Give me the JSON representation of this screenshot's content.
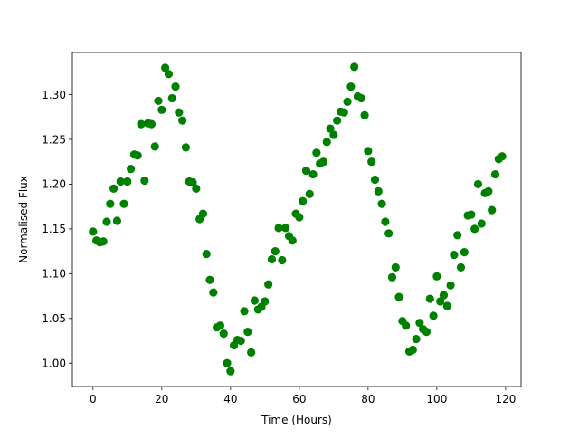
{
  "chart_data": {
    "type": "scatter",
    "title": "",
    "xlabel": "Time (Hours)",
    "ylabel": "Normalised Flux",
    "xlim": [
      -6,
      124.5
    ],
    "ylim": [
      0.974,
      1.347
    ],
    "x_ticks": [
      0,
      20,
      40,
      60,
      80,
      100,
      120
    ],
    "y_ticks": [
      1.0,
      1.05,
      1.1,
      1.15,
      1.2,
      1.25,
      1.3
    ],
    "x_tick_labels": [
      "0",
      "20",
      "40",
      "60",
      "80",
      "100",
      "120"
    ],
    "y_tick_labels": [
      "1.00",
      "1.05",
      "1.10",
      "1.15",
      "1.20",
      "1.25",
      "1.30"
    ],
    "grid": false,
    "marker_color": "#008000",
    "points": {
      "x": [
        0,
        1,
        2,
        3,
        4,
        5,
        6,
        7,
        8,
        9,
        10,
        11,
        12,
        13,
        14,
        15,
        16,
        17,
        18,
        19,
        20,
        21,
        22,
        23,
        24,
        25,
        26,
        27,
        28,
        29,
        30,
        31,
        32,
        33,
        34,
        35,
        36,
        37,
        38,
        39,
        40,
        41,
        42,
        43,
        44,
        45,
        46,
        47,
        48,
        49,
        50,
        51,
        52,
        53,
        54,
        55,
        56,
        57,
        58,
        59,
        60,
        61,
        62,
        63,
        64,
        65,
        66,
        67,
        68,
        69,
        70,
        71,
        72,
        73,
        74,
        75,
        76,
        77,
        78,
        79,
        80,
        81,
        82,
        83,
        84,
        85,
        86,
        87,
        88,
        89,
        90,
        91,
        92,
        93,
        94,
        95,
        96,
        97,
        98,
        99,
        100,
        101,
        102,
        103,
        104,
        105,
        106,
        107,
        108,
        109,
        110,
        111,
        112,
        113,
        114,
        115,
        116,
        117,
        118,
        119
      ],
      "y": [
        1.147,
        1.137,
        1.135,
        1.136,
        1.158,
        1.178,
        1.195,
        1.159,
        1.203,
        1.178,
        1.203,
        1.217,
        1.233,
        1.232,
        1.267,
        1.204,
        1.268,
        1.267,
        1.242,
        1.293,
        1.283,
        1.33,
        1.323,
        1.296,
        1.309,
        1.28,
        1.271,
        1.241,
        1.203,
        1.202,
        1.195,
        1.161,
        1.167,
        1.122,
        1.093,
        1.079,
        1.04,
        1.042,
        1.033,
        1.0,
        0.991,
        1.02,
        1.026,
        1.025,
        1.058,
        1.035,
        1.012,
        1.07,
        1.06,
        1.063,
        1.069,
        1.088,
        1.116,
        1.125,
        1.151,
        1.115,
        1.151,
        1.142,
        1.137,
        1.167,
        1.163,
        1.181,
        1.215,
        1.189,
        1.211,
        1.235,
        1.223,
        1.225,
        1.247,
        1.262,
        1.255,
        1.271,
        1.281,
        1.28,
        1.292,
        1.309,
        1.331,
        1.298,
        1.296,
        1.277,
        1.237,
        1.225,
        1.205,
        1.192,
        1.178,
        1.158,
        1.145,
        1.096,
        1.107,
        1.074,
        1.047,
        1.042,
        1.013,
        1.015,
        1.027,
        1.045,
        1.038,
        1.035,
        1.072,
        1.053,
        1.097,
        1.069,
        1.076,
        1.064,
        1.087,
        1.121,
        1.143,
        1.107,
        1.124,
        1.165,
        1.166,
        1.15,
        1.2,
        1.156,
        1.19,
        1.192,
        1.171,
        1.211,
        1.228,
        1.231
      ]
    }
  }
}
